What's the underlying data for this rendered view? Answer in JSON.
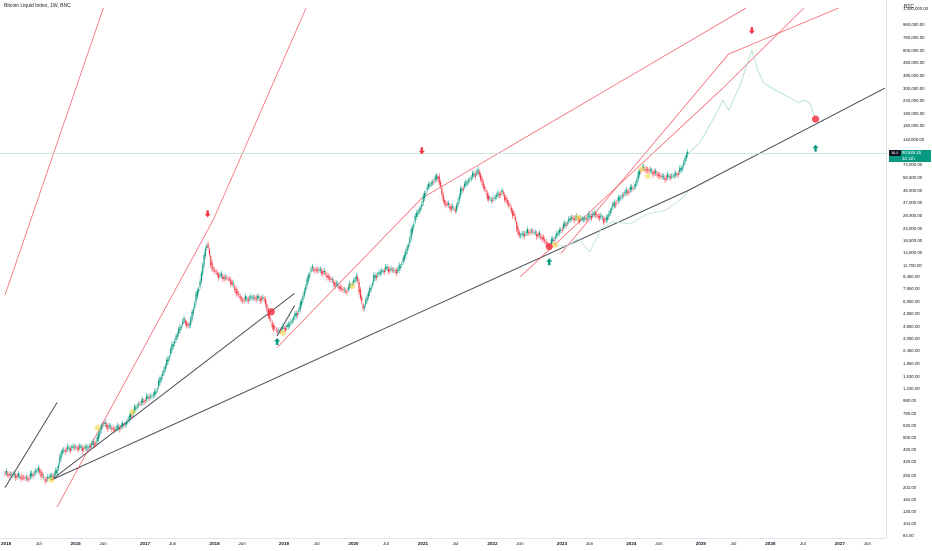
{
  "chart_data": {
    "type": "candlestick",
    "title": "Bitcoin Liquid Index, 1W, BNC",
    "currency": "BTC",
    "symbol": "BLX",
    "last_price": "90,585.25",
    "countdown": "2d 11h",
    "y_scale": "log",
    "ylim": [
      84,
      1300000
    ],
    "xlim": [
      "2015-01",
      "2027-09"
    ],
    "price_ticks": [
      "1,300,000.00",
      "960,000.00",
      "760,000.00",
      "600,000.00",
      "480,000.00",
      "380,000.00",
      "300,000.00",
      "240,000.00",
      "190,000.00",
      "150,000.00",
      "118,000.00",
      "74,000.00",
      "58,000.00",
      "46,000.00",
      "37,000.00",
      "29,000.00",
      "23,000.00",
      "18,500.00",
      "14,900.00",
      "11,700.00",
      "9,450.00",
      "7,650.00",
      "6,050.00",
      "4,850.00",
      "3,850.00",
      "3,050.00",
      "2,450.00",
      "1,950.00",
      "1,530.00",
      "1,230.00",
      "980.00",
      "780.00",
      "620.00",
      "500.00",
      "400.00",
      "320.00",
      "250.00",
      "202.00",
      "162.00",
      "130.00",
      "104.00",
      "84.00"
    ],
    "time_ticks": [
      {
        "label": "2015",
        "date": "2015-01",
        "year": true
      },
      {
        "label": "Jul",
        "date": "2015-07",
        "year": false
      },
      {
        "label": "2016",
        "date": "2016-01",
        "year": true
      },
      {
        "label": "Jun",
        "date": "2016-06",
        "year": false
      },
      {
        "label": "2017",
        "date": "2017-01",
        "year": true
      },
      {
        "label": "Jun",
        "date": "2017-06",
        "year": false
      },
      {
        "label": "2018",
        "date": "2018-01",
        "year": true
      },
      {
        "label": "Jun",
        "date": "2018-06",
        "year": false
      },
      {
        "label": "2019",
        "date": "2019-01",
        "year": true
      },
      {
        "label": "Jul",
        "date": "2019-07",
        "year": false
      },
      {
        "label": "2020",
        "date": "2020-01",
        "year": true
      },
      {
        "label": "Jul",
        "date": "2020-07",
        "year": false
      },
      {
        "label": "2021",
        "date": "2021-01",
        "year": true
      },
      {
        "label": "Jul",
        "date": "2021-07",
        "year": false
      },
      {
        "label": "2022",
        "date": "2022-01",
        "year": true
      },
      {
        "label": "Jun",
        "date": "2022-06",
        "year": false
      },
      {
        "label": "2023",
        "date": "2023-01",
        "year": true
      },
      {
        "label": "Jun",
        "date": "2023-06",
        "year": false
      },
      {
        "label": "2024",
        "date": "2024-01",
        "year": true
      },
      {
        "label": "Jun",
        "date": "2024-06",
        "year": false
      },
      {
        "label": "2025",
        "date": "2025-01",
        "year": true
      },
      {
        "label": "Jul",
        "date": "2025-07",
        "year": false
      },
      {
        "label": "2026",
        "date": "2026-01",
        "year": true
      },
      {
        "label": "Jul",
        "date": "2026-07",
        "year": false
      },
      {
        "label": "2027",
        "date": "2027-01",
        "year": true
      },
      {
        "label": "Jun",
        "date": "2027-06",
        "year": false
      }
    ],
    "price_path": [
      [
        "2015-01",
        260
      ],
      [
        "2015-03",
        250
      ],
      [
        "2015-05",
        235
      ],
      [
        "2015-07",
        280
      ],
      [
        "2015-08",
        230
      ],
      [
        "2015-10",
        260
      ],
      [
        "2015-11",
        390
      ],
      [
        "2016-01",
        420
      ],
      [
        "2016-03",
        410
      ],
      [
        "2016-05",
        460
      ],
      [
        "2016-06",
        650
      ],
      [
        "2016-08",
        580
      ],
      [
        "2016-10",
        640
      ],
      [
        "2016-12",
        900
      ],
      [
        "2017-02",
        1050
      ],
      [
        "2017-03",
        1100
      ],
      [
        "2017-05",
        1900
      ],
      [
        "2017-06",
        2600
      ],
      [
        "2017-08",
        4300
      ],
      [
        "2017-09",
        3800
      ],
      [
        "2017-10",
        6000
      ],
      [
        "2017-11",
        9000
      ],
      [
        "2017-12",
        18000
      ],
      [
        "2018-01",
        11000
      ],
      [
        "2018-02",
        9800
      ],
      [
        "2018-04",
        9000
      ],
      [
        "2018-06",
        6200
      ],
      [
        "2018-08",
        6500
      ],
      [
        "2018-10",
        6300
      ],
      [
        "2018-11",
        4200
      ],
      [
        "2018-12",
        3500
      ],
      [
        "2019-02",
        3800
      ],
      [
        "2019-04",
        5200
      ],
      [
        "2019-06",
        11000
      ],
      [
        "2019-08",
        10500
      ],
      [
        "2019-10",
        8500
      ],
      [
        "2019-12",
        7200
      ],
      [
        "2020-02",
        9500
      ],
      [
        "2020-03",
        5200
      ],
      [
        "2020-05",
        9500
      ],
      [
        "2020-07",
        11000
      ],
      [
        "2020-09",
        10500
      ],
      [
        "2020-10",
        13000
      ],
      [
        "2020-11",
        18000
      ],
      [
        "2020-12",
        28000
      ],
      [
        "2021-01",
        34000
      ],
      [
        "2021-02",
        48000
      ],
      [
        "2021-04",
        60000
      ],
      [
        "2021-05",
        37000
      ],
      [
        "2021-07",
        32000
      ],
      [
        "2021-08",
        47000
      ],
      [
        "2021-10",
        61000
      ],
      [
        "2021-11",
        65000
      ],
      [
        "2021-12",
        47000
      ],
      [
        "2022-01",
        38000
      ],
      [
        "2022-03",
        45000
      ],
      [
        "2022-05",
        30000
      ],
      [
        "2022-06",
        20000
      ],
      [
        "2022-08",
        22000
      ],
      [
        "2022-10",
        19500
      ],
      [
        "2022-11",
        16500
      ],
      [
        "2023-01",
        22000
      ],
      [
        "2023-03",
        28000
      ],
      [
        "2023-05",
        27000
      ],
      [
        "2023-07",
        30000
      ],
      [
        "2023-09",
        26500
      ],
      [
        "2023-10",
        34000
      ],
      [
        "2023-12",
        43000
      ],
      [
        "2024-02",
        50000
      ],
      [
        "2024-03",
        70000
      ],
      [
        "2024-05",
        65000
      ],
      [
        "2024-07",
        58000
      ],
      [
        "2024-09",
        61000
      ],
      [
        "2024-10",
        68000
      ],
      [
        "2024-11",
        90585
      ]
    ],
    "projection_path": [
      [
        "2024-11",
        90585
      ],
      [
        "2025-01",
        110000
      ],
      [
        "2025-03",
        160000
      ],
      [
        "2025-05",
        240000
      ],
      [
        "2025-06",
        200000
      ],
      [
        "2025-08",
        320000
      ],
      [
        "2025-10",
        600000
      ],
      [
        "2025-11",
        420000
      ],
      [
        "2025-12",
        330000
      ],
      [
        "2026-02",
        290000
      ],
      [
        "2026-04",
        260000
      ],
      [
        "2026-06",
        230000
      ],
      [
        "2026-07",
        240000
      ],
      [
        "2026-08",
        230000
      ],
      [
        "2026-09",
        170000
      ]
    ],
    "earlier_cycle_overlay": [
      [
        "2022-12",
        17000
      ],
      [
        "2023-02",
        16500
      ],
      [
        "2023-04",
        19000
      ],
      [
        "2023-06",
        15000
      ],
      [
        "2023-08",
        23000
      ],
      [
        "2023-10",
        26000
      ],
      [
        "2024-01",
        25000
      ],
      [
        "2024-04",
        30000
      ],
      [
        "2024-07",
        32000
      ],
      [
        "2024-10",
        40000
      ],
      [
        "2024-11",
        45000
      ]
    ],
    "trendlines": [
      {
        "kind": "support",
        "color": "#363a45",
        "points": [
          [
            "2015-09",
            230
          ],
          [
            "2024-11",
            46000
          ],
          [
            "2027-09",
            300000
          ]
        ]
      },
      {
        "kind": "support",
        "color": "#363a45",
        "points": [
          [
            "2015-01",
            200
          ],
          [
            "2015-10",
            950
          ]
        ]
      },
      {
        "kind": "support",
        "color": "#363a45",
        "points": [
          [
            "2018-12",
            3200
          ],
          [
            "2019-03",
            5600
          ]
        ]
      },
      {
        "kind": "support",
        "color": "#363a45",
        "points": [
          [
            "2015-09",
            230
          ],
          [
            "2019-03",
            7000
          ]
        ]
      },
      {
        "kind": "channel",
        "color": "#f23645",
        "points": [
          [
            "2015-01",
            6800
          ],
          [
            "2016-06",
            1300000
          ]
        ]
      },
      {
        "kind": "channel",
        "color": "#f23645",
        "points": [
          [
            "2015-10",
            140
          ],
          [
            "2018-01",
            27000
          ],
          [
            "2019-05",
            1300000
          ]
        ]
      },
      {
        "kind": "channel",
        "color": "#f23645",
        "points": [
          [
            "2018-12",
            2600
          ],
          [
            "2021-01",
            40000
          ],
          [
            "2025-09",
            1300000
          ]
        ]
      },
      {
        "kind": "channel",
        "color": "#f23645",
        "points": [
          [
            "2022-06",
            9500
          ],
          [
            "2025-05",
            300000
          ],
          [
            "2026-07",
            1300000
          ]
        ]
      },
      {
        "kind": "channel",
        "color": "#f23645",
        "points": [
          [
            "2023-01",
            14500
          ],
          [
            "2025-06",
            560000
          ],
          [
            "2027-01",
            1300000
          ]
        ]
      }
    ],
    "marker_arrows": [
      {
        "direction": "down",
        "color": "#f23645",
        "date": "2017-12",
        "value": 30000
      },
      {
        "direction": "down",
        "color": "#f23645",
        "date": "2021-01",
        "value": 95000
      },
      {
        "direction": "down",
        "color": "#f23645",
        "date": "2025-10",
        "value": 860000
      },
      {
        "direction": "up",
        "color": "#089981",
        "date": "2018-12",
        "value": 2900
      },
      {
        "direction": "up",
        "color": "#089981",
        "date": "2022-11",
        "value": 12500
      },
      {
        "direction": "up",
        "color": "#089981",
        "date": "2026-09",
        "value": 100000
      }
    ],
    "marker_dots": [
      {
        "color": "#f23645",
        "date": "2018-11",
        "value": 5000
      },
      {
        "color": "#f23645",
        "date": "2022-11",
        "value": 16500
      },
      {
        "color": "#f23645",
        "date": "2026-09",
        "value": 170000
      },
      {
        "color": "#f7d94a",
        "date": "2015-09",
        "value": 230
      },
      {
        "color": "#f7d94a",
        "date": "2016-05",
        "value": 600
      },
      {
        "color": "#f7d94a",
        "date": "2016-11",
        "value": 800
      },
      {
        "color": "#f7d94a",
        "date": "2019-01",
        "value": 3400
      },
      {
        "color": "#f7d94a",
        "date": "2020-01",
        "value": 8000
      },
      {
        "color": "#f7d94a",
        "date": "2022-12",
        "value": 17000
      },
      {
        "color": "#f7d94a",
        "date": "2023-04",
        "value": 28000
      },
      {
        "color": "#f7d94a",
        "date": "2024-03",
        "value": 68000
      },
      {
        "color": "#f7d94a",
        "date": "2024-04",
        "value": 60000
      }
    ]
  },
  "colors": {
    "up": "#089981",
    "down": "#f23645",
    "support": "#363a45",
    "projection": "#a8dfc9",
    "overlay": "#b9e3d3",
    "last_price_line": "#b9e3d3",
    "highlight": "#f7d94a"
  }
}
